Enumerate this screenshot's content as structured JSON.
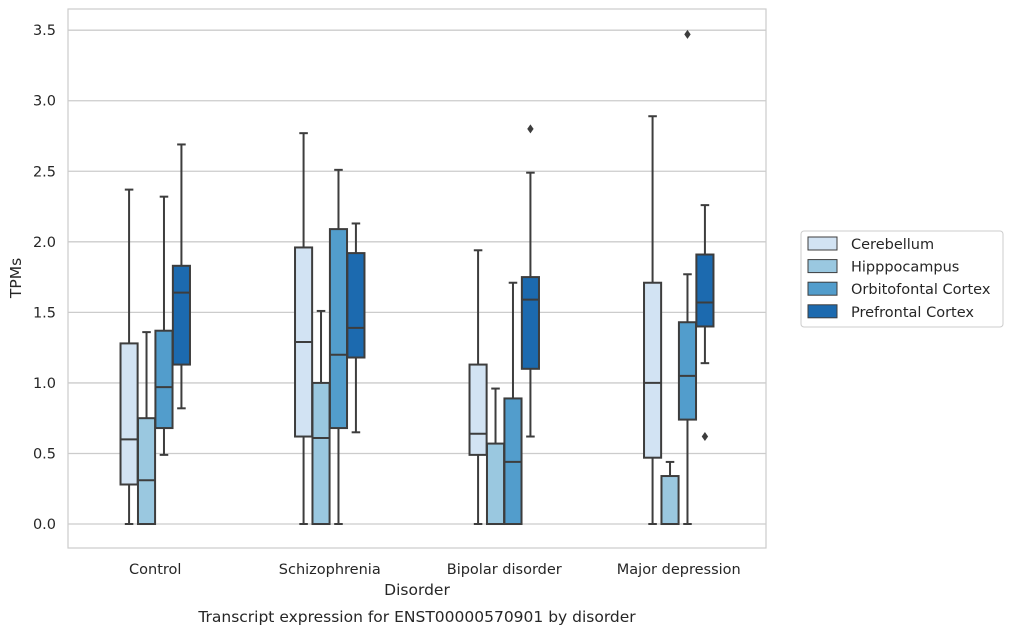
{
  "chart_data": {
    "type": "boxplot",
    "title": "",
    "caption": "Transcript expression for ENST00000570901 by disorder",
    "xlabel": "Disorder",
    "ylabel": "TPMs",
    "ylim": [
      -0.17,
      3.65
    ],
    "yticks": [
      0.0,
      0.5,
      1.0,
      1.5,
      2.0,
      2.5,
      3.0,
      3.5
    ],
    "ytick_labels": [
      "0.0",
      "0.5",
      "1.0",
      "1.5",
      "2.0",
      "2.5",
      "3.0",
      "3.5"
    ],
    "grid": "horizontal",
    "legend_position": "right",
    "categories": [
      "Control",
      "Schizophrenia",
      "Bipolar disorder",
      "Major depression"
    ],
    "series": [
      {
        "name": "Cerebellum",
        "color": "#d2e3f3",
        "boxes": [
          {
            "whislo": 0.0,
            "q1": 0.28,
            "med": 0.6,
            "q3": 1.28,
            "whishi": 2.37,
            "fliers": []
          },
          {
            "whislo": 0.0,
            "q1": 0.62,
            "med": 1.29,
            "q3": 1.96,
            "whishi": 2.77,
            "fliers": []
          },
          {
            "whislo": 0.0,
            "q1": 0.49,
            "med": 0.64,
            "q3": 1.13,
            "whishi": 1.94,
            "fliers": []
          },
          {
            "whislo": 0.0,
            "q1": 0.47,
            "med": 1.0,
            "q3": 1.71,
            "whishi": 2.89,
            "fliers": []
          }
        ]
      },
      {
        "name": "Hipppocampus",
        "color": "#9ac8e0",
        "boxes": [
          {
            "whislo": 0.0,
            "q1": 0.0,
            "med": 0.31,
            "q3": 0.75,
            "whishi": 1.36,
            "fliers": []
          },
          {
            "whislo": 0.0,
            "q1": 0.0,
            "med": 0.61,
            "q3": 1.0,
            "whishi": 1.51,
            "fliers": []
          },
          {
            "whislo": 0.0,
            "q1": 0.0,
            "med": 0.0,
            "q3": 0.57,
            "whishi": 0.96,
            "fliers": []
          },
          {
            "whislo": 0.0,
            "q1": 0.0,
            "med": 0.0,
            "q3": 0.34,
            "whishi": 0.44,
            "fliers": []
          }
        ]
      },
      {
        "name": "Orbitofontal Cortex",
        "color": "#529dcc",
        "boxes": [
          {
            "whislo": 0.49,
            "q1": 0.68,
            "med": 0.97,
            "q3": 1.37,
            "whishi": 2.32,
            "fliers": []
          },
          {
            "whislo": 0.0,
            "q1": 0.68,
            "med": 1.2,
            "q3": 2.09,
            "whishi": 2.51,
            "fliers": []
          },
          {
            "whislo": 0.0,
            "q1": 0.0,
            "med": 0.44,
            "q3": 0.89,
            "whishi": 1.71,
            "fliers": []
          },
          {
            "whislo": 0.0,
            "q1": 0.74,
            "med": 1.05,
            "q3": 1.43,
            "whishi": 1.77,
            "fliers": [
              3.47
            ]
          }
        ]
      },
      {
        "name": "Prefrontal Cortex",
        "color": "#1c6aaf",
        "boxes": [
          {
            "whislo": 0.82,
            "q1": 1.13,
            "med": 1.64,
            "q3": 1.83,
            "whishi": 2.69,
            "fliers": []
          },
          {
            "whislo": 0.65,
            "q1": 1.18,
            "med": 1.39,
            "q3": 1.92,
            "whishi": 2.13,
            "fliers": []
          },
          {
            "whislo": 0.62,
            "q1": 1.1,
            "med": 1.59,
            "q3": 1.75,
            "whishi": 2.49,
            "fliers": [
              2.8
            ]
          },
          {
            "whislo": 1.14,
            "q1": 1.4,
            "med": 1.57,
            "q3": 1.91,
            "whishi": 2.26,
            "fliers": [
              0.62
            ]
          }
        ]
      }
    ]
  }
}
